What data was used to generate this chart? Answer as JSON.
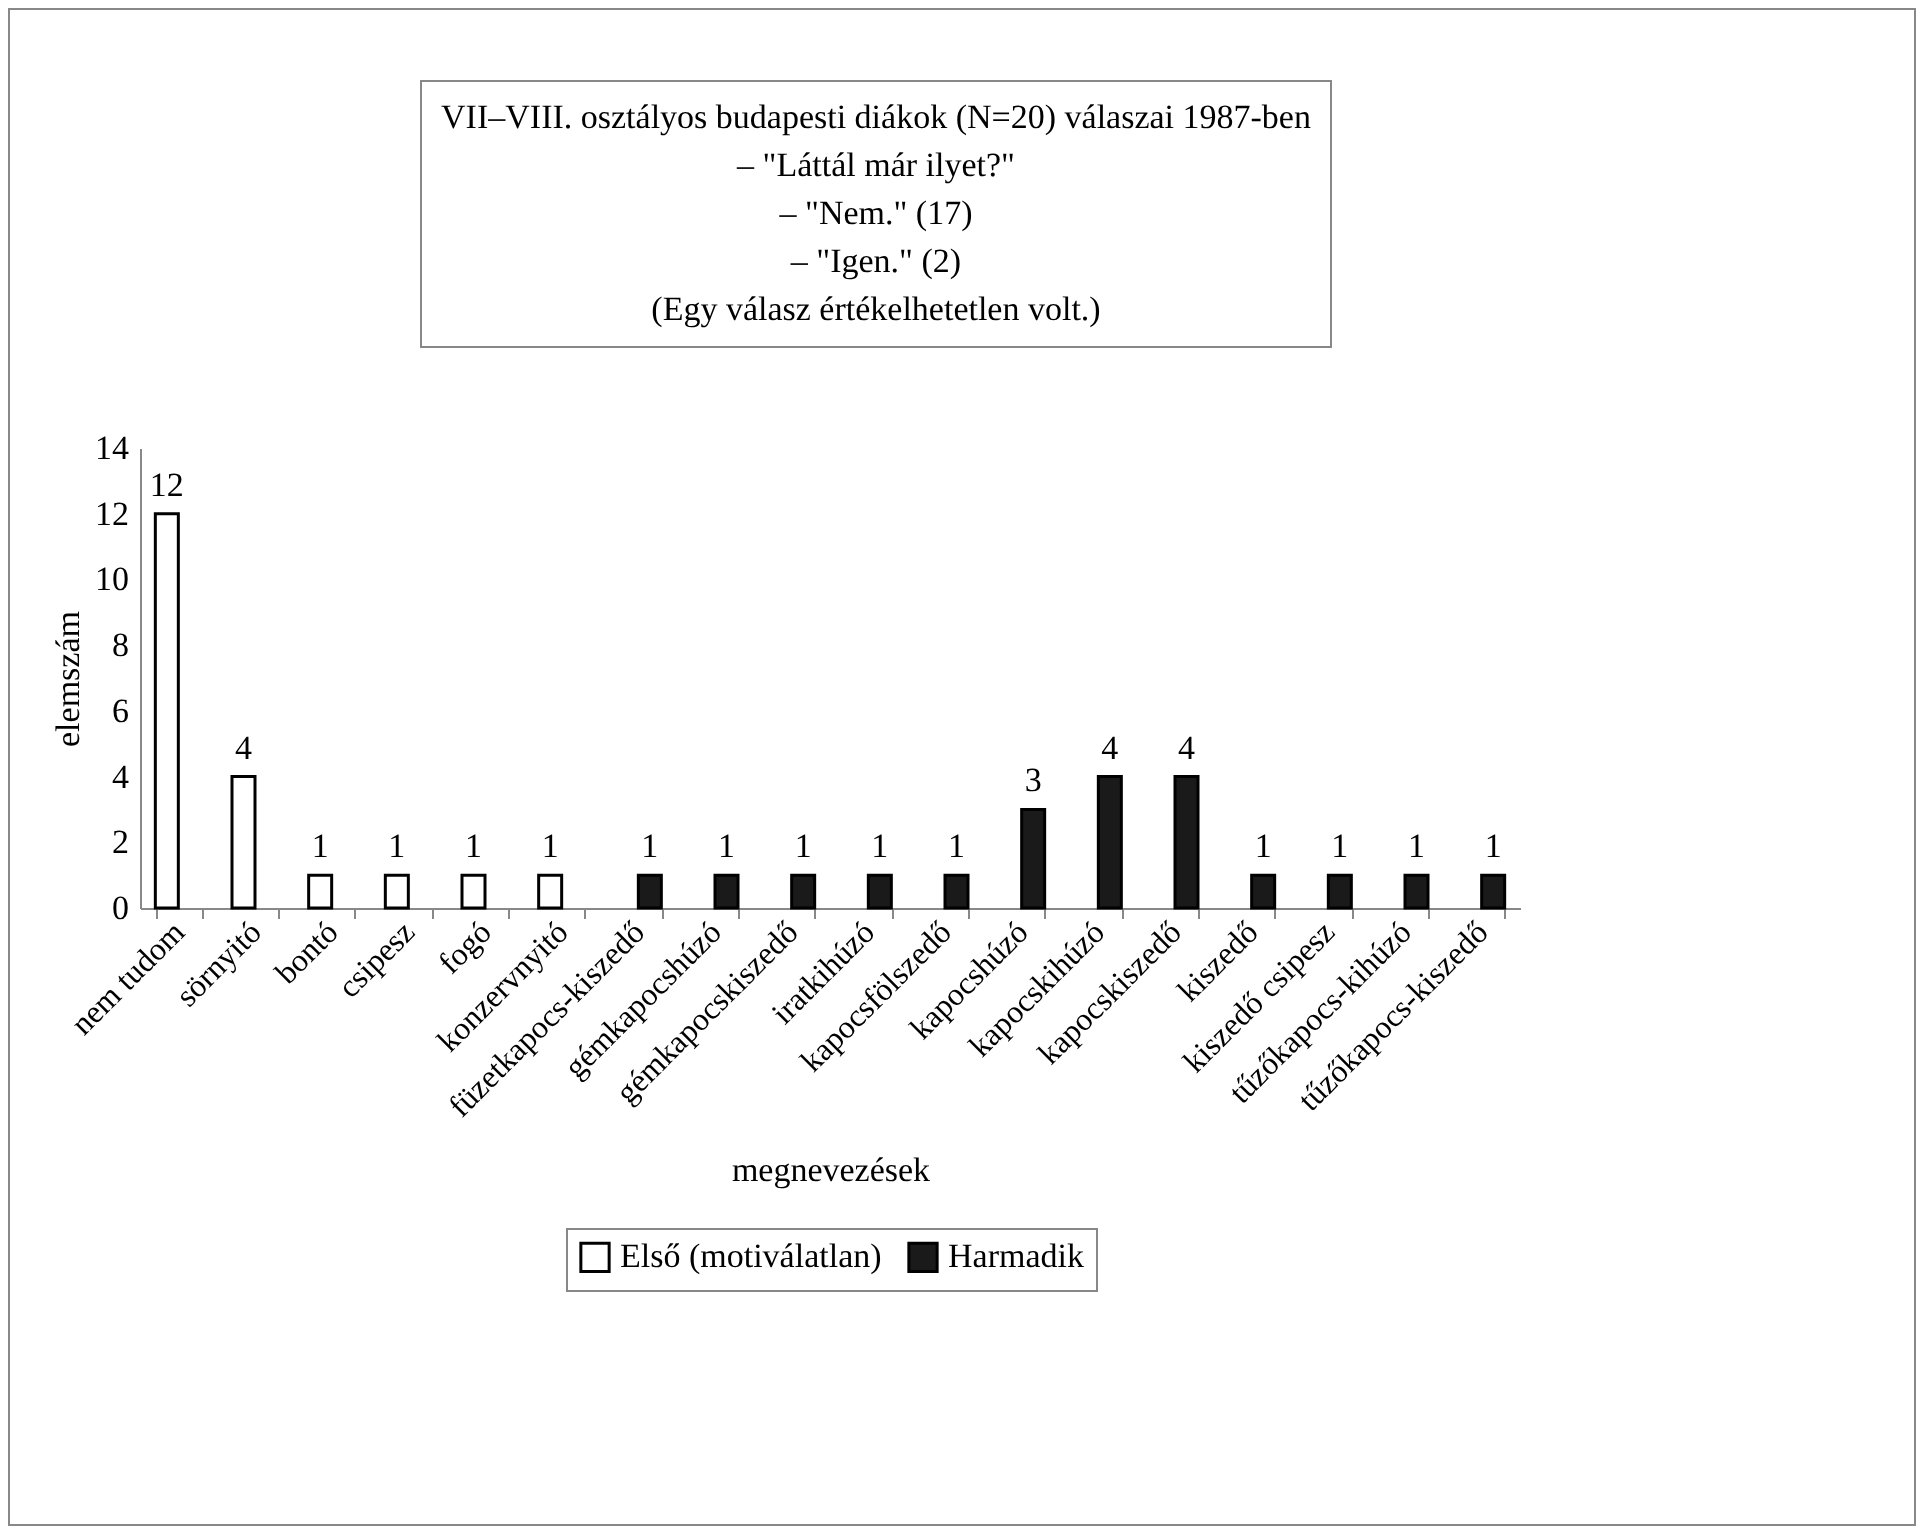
{
  "chart_data": {
    "type": "bar",
    "title": "VII–VIII. osztályos budapesti diákok (N=20) válaszai 1987-ben",
    "annotations": [
      "– \"Láttál már ilyet?\"",
      "– \"Nem.\" (17)",
      "– \"Igen.\" (2)",
      "(Egy válasz értékelhetetlen volt.)"
    ],
    "xlabel": "megnevezések",
    "ylabel": "elemszám",
    "categories": [
      "nem tudom",
      "sörnyitó",
      "bontó",
      "csipesz",
      "fogó",
      "konzervnyitó",
      "füzetkapocs-kiszedő",
      "gémkapocshúzó",
      "gémkapocskiszedő",
      "iratkihúzó",
      "kapocsfölszedő",
      "kapocshúzó",
      "kapocskihúzó",
      "kapocskiszedő",
      "kiszedő",
      "kiszedő csipesz",
      "tűzőkapocs-kihúzó",
      "tűzőkapocs-kiszedő"
    ],
    "series": [
      {
        "name": "Első (motiválatlan)",
        "color": "#ffffff",
        "values": [
          12,
          4,
          1,
          1,
          1,
          1,
          null,
          null,
          null,
          null,
          null,
          null,
          null,
          null,
          null,
          null,
          null,
          null
        ]
      },
      {
        "name": "Harmadik",
        "color": "#1a1a1a",
        "values": [
          null,
          null,
          null,
          null,
          null,
          null,
          1,
          1,
          1,
          1,
          1,
          3,
          4,
          4,
          1,
          1,
          1,
          1
        ]
      }
    ],
    "ylim": [
      0,
      14
    ],
    "yticks": [
      0,
      2,
      4,
      6,
      8,
      10,
      12,
      14
    ],
    "grid": false,
    "legend": "bottom",
    "data_labels": true
  }
}
